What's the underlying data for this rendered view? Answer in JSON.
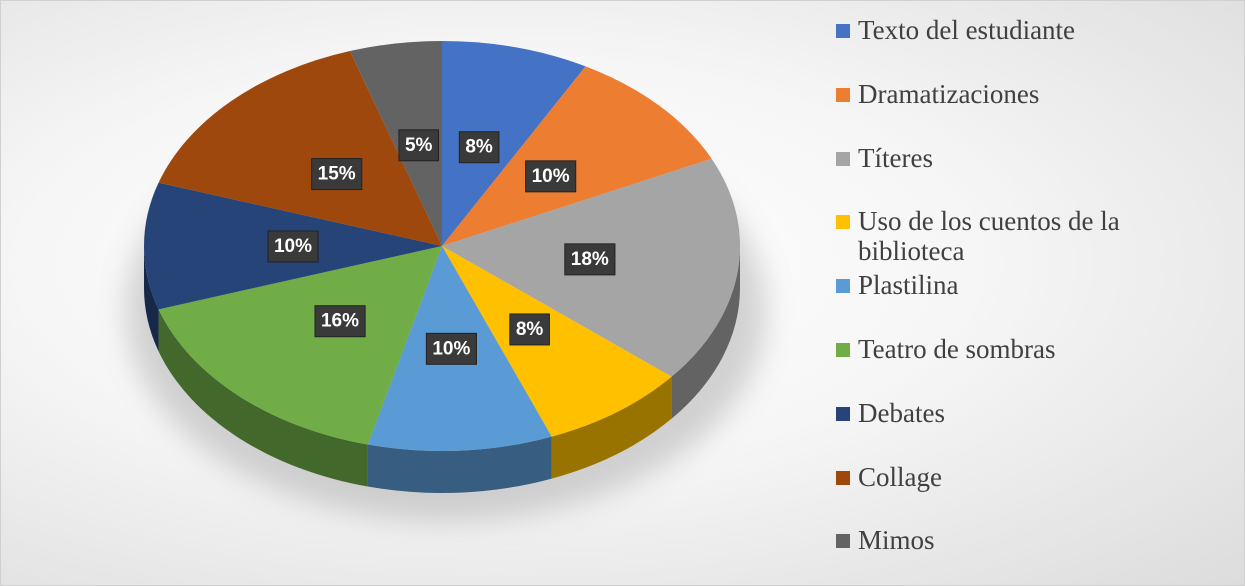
{
  "chart_data": {
    "type": "pie",
    "categories": [
      "Texto del estudiante",
      "Dramatizaciones",
      "Títeres",
      "Uso de los cuentos de la biblioteca",
      "Plastilina",
      "Teatro de sombras",
      "Debates",
      "Collage",
      "Mimos"
    ],
    "values": [
      8,
      10,
      18,
      8,
      10,
      16,
      10,
      15,
      5
    ],
    "value_labels": [
      "8%",
      "10%",
      "18%",
      "8%",
      "10%",
      "16%",
      "10%",
      "15%",
      "5%"
    ],
    "colors": [
      "#4472c4",
      "#ed7d31",
      "#a5a5a5",
      "#ffc000",
      "#5b9bd5",
      "#70ad47",
      "#264478",
      "#9e480e",
      "#636363"
    ],
    "legend": "right"
  }
}
